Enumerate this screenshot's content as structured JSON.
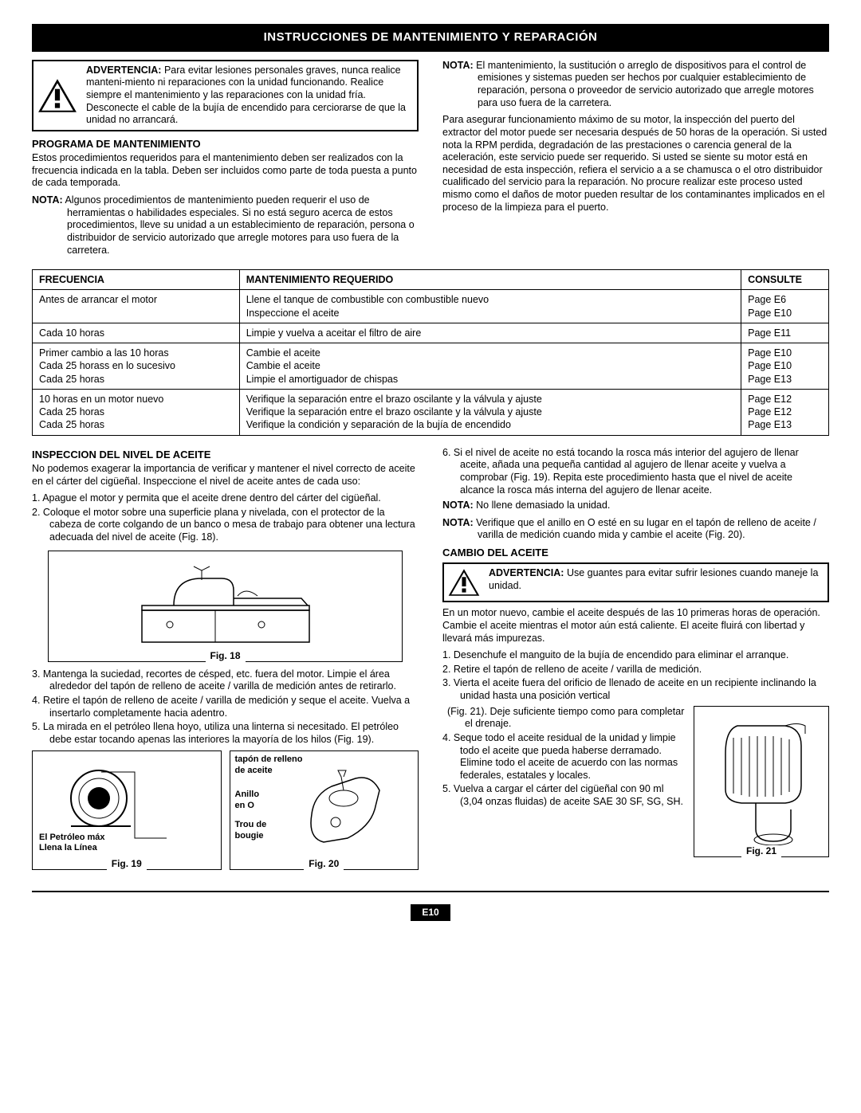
{
  "banner": "INSTRUCCIONES DE MANTENIMIENTO Y REPARACIÓN",
  "warning1": {
    "bold": "ADVERTENCIA:",
    "text": "Para evitar lesiones personales graves, nunca realice manteni-miento ni reparaciones con la unidad funcionando. Realice siempre el mantenimiento y las reparaciones con la unidad fría. Desconecte el cable de la bujía de encendido para cerciorarse de que la unidad no arrancará."
  },
  "programa": {
    "head": "PROGRAMA DE MANTENIMIENTO",
    "p1": "Estos procedimientos requeridos para el mantenimiento deben ser realizados con la frecuencia indicada en la tabla. Deben ser incluidos como parte de toda puesta a punto de cada temporada.",
    "nota_lbl": "NOTA:",
    "nota": "Algunos procedimientos de mantenimiento pueden requerir el uso de herramientas o habilidades especiales. Si no está seguro acerca de estos procedimientos, lleve su unidad a un establecimiento de reparación, persona o distribuidor de servicio autorizado que arregle motores para uso fuera de la carretera."
  },
  "rightTop": {
    "nota_lbl": "NOTA:",
    "nota": "El mantenimiento, la sustitución o arreglo de dispositivos para el control de emisiones y sistemas pueden ser hechos por cualquier establecimiento de reparación, persona o proveedor de servicio autorizado que arregle motores para uso fuera de la carretera.",
    "p2": "Para asegurar funcionamiento máximo de su motor, la inspección del puerto del extractor del motor puede ser necesaria después de 50 horas de la operación. Si usted nota la RPM perdida, degradación de las prestaciones o carencia general de la aceleración, este servicio puede ser requerido. Si usted se siente su motor está en necesidad de esta inspección, refiera el servicio a a se chamusca o el otro distribuidor cualificado del servicio para la reparación. No procure realizar este proceso usted mismo como el daños de motor pueden resultar de los contaminantes implicados en el proceso de la limpieza para el puerto."
  },
  "table": {
    "h1": "FRECUENCIA",
    "h2": "MANTENIMIENTO REQUERIDO",
    "h3": "CONSULTE",
    "rows": [
      {
        "f": "Antes de arrancar el motor",
        "m": "Llene el tanque de combustible con combustible nuevo\nInspeccione el aceite",
        "c": "Page E6\nPage E10"
      },
      {
        "f": "Cada 10 horas",
        "m": "Limpie y vuelva a aceitar el filtro de aire",
        "c": "Page E11"
      },
      {
        "f": "Primer cambio a las 10 horas\nCada 25 horass en lo sucesivo\nCada 25 horas",
        "m": "Cambie el aceite\nCambie el aceite\nLimpie el amortiguador de chispas",
        "c": "Page E10\nPage E10\nPage E13"
      },
      {
        "f": "10 horas en un motor nuevo\nCada 25 horas\nCada 25 horas",
        "m": "Verifique la separación entre el brazo oscilante y la válvula y ajuste\nVerifique la separación entre el brazo oscilante y la válvula y ajuste\nVerifique la condición y separación de la bujía de encendido",
        "c": "Page E12\nPage E12\nPage E13"
      }
    ]
  },
  "inspeccion": {
    "head": "INSPECCION DEL NIVEL DE ACEITE",
    "intro": "No podemos exagerar la importancia de verificar y mantener el nivel correcto de aceite en el cárter del cigüeñal. Inspeccione el nivel de aceite antes de cada uso:",
    "s1": "1.   Apague el motor y permita que el aceite drene dentro del cárter del cigüeñal.",
    "s2": "2.   Coloque el motor sobre una superficie plana y nivelada, con el protector de la cabeza de corte colgando de un banco o mesa de trabajo para obtener una lectura adecuada del nivel de aceite (Fig. 18).",
    "fig18": "Fig. 18",
    "s3": "3.   Mantenga la suciedad, recortes de césped, etc. fuera del motor. Limpie el área alrededor del tapón de relleno de aceite / varilla de medición antes de retirarlo.",
    "s4": "4.   Retire el tapón de relleno de aceite / varilla de medición y seque el aceite. Vuelva a insertarlo completamente hacia adentro.",
    "s5": "5.   La mirada en el petróleo llena hoyo, utiliza una linterna si necesitado. El petróleo debe estar tocando apenas las interiores la mayoría de los hilos (Fig. 19).",
    "fig19": "Fig. 19",
    "fig19_l1": "El Petróleo máx",
    "fig19_l2": "Llena la Línea",
    "fig20": "Fig. 20",
    "fig20_l1": "tapón de relleno\nde aceite",
    "fig20_l2": "Anillo\nen O",
    "fig20_l3": "Trou de\nbougie"
  },
  "right2": {
    "s6": "6.   Si el nivel de aceite no está tocando la rosca más interior del agujero de llenar aceite, añada una pequeña cantidad al agujero de llenar aceite y vuelva a comprobar (Fig. 19). Repita este procedimiento hasta que el nivel de aceite alcance la rosca más interna del agujero de llenar aceite.",
    "nota1_lbl": "NOTA:",
    "nota1": "No llene demasiado la unidad.",
    "nota2_lbl": "NOTA:",
    "nota2": "Verifique que el anillo en O esté en su lugar en el tapón de relleno de aceite / varilla de medición cuando mida y cambie el aceite (Fig. 20).",
    "head": "CAMBIO DEL ACEITE",
    "warn_bold": "ADVERTENCIA:",
    "warn": "Use guantes para evitar sufrir lesiones cuando maneje la unidad.",
    "p": "En un motor nuevo, cambie el aceite después de las 10 primeras horas de operación. Cambie el aceite mientras el motor aún está caliente. El aceite fluirá con libertad y llevará más impurezas.",
    "c1": "1.   Desenchufe el manguito de la bujía de encendido para eliminar el arranque.",
    "c2": "2.   Retire el tapón de relleno de aceite / varilla de medición.",
    "c3a": "3.   Vierta el aceite fuera del orificio de llenado de aceite en un recipiente inclinando la unidad hasta una posición vertical",
    "c3b": "(Fig. 21). Deje suficiente tiempo como para completar el drenaje.",
    "c4": "4.   Seque todo el aceite residual de la unidad y limpie todo el aceite que pueda haberse derramado. Elimine todo el aceite de acuerdo con las normas federales, estatales y locales.",
    "c5": "5.   Vuelva a cargar el cárter del cigüeñal con 90 ml (3,04 onzas fluidas) de aceite SAE 30 SF, SG, SH.",
    "fig21": "Fig. 21"
  },
  "pageNum": "E10"
}
